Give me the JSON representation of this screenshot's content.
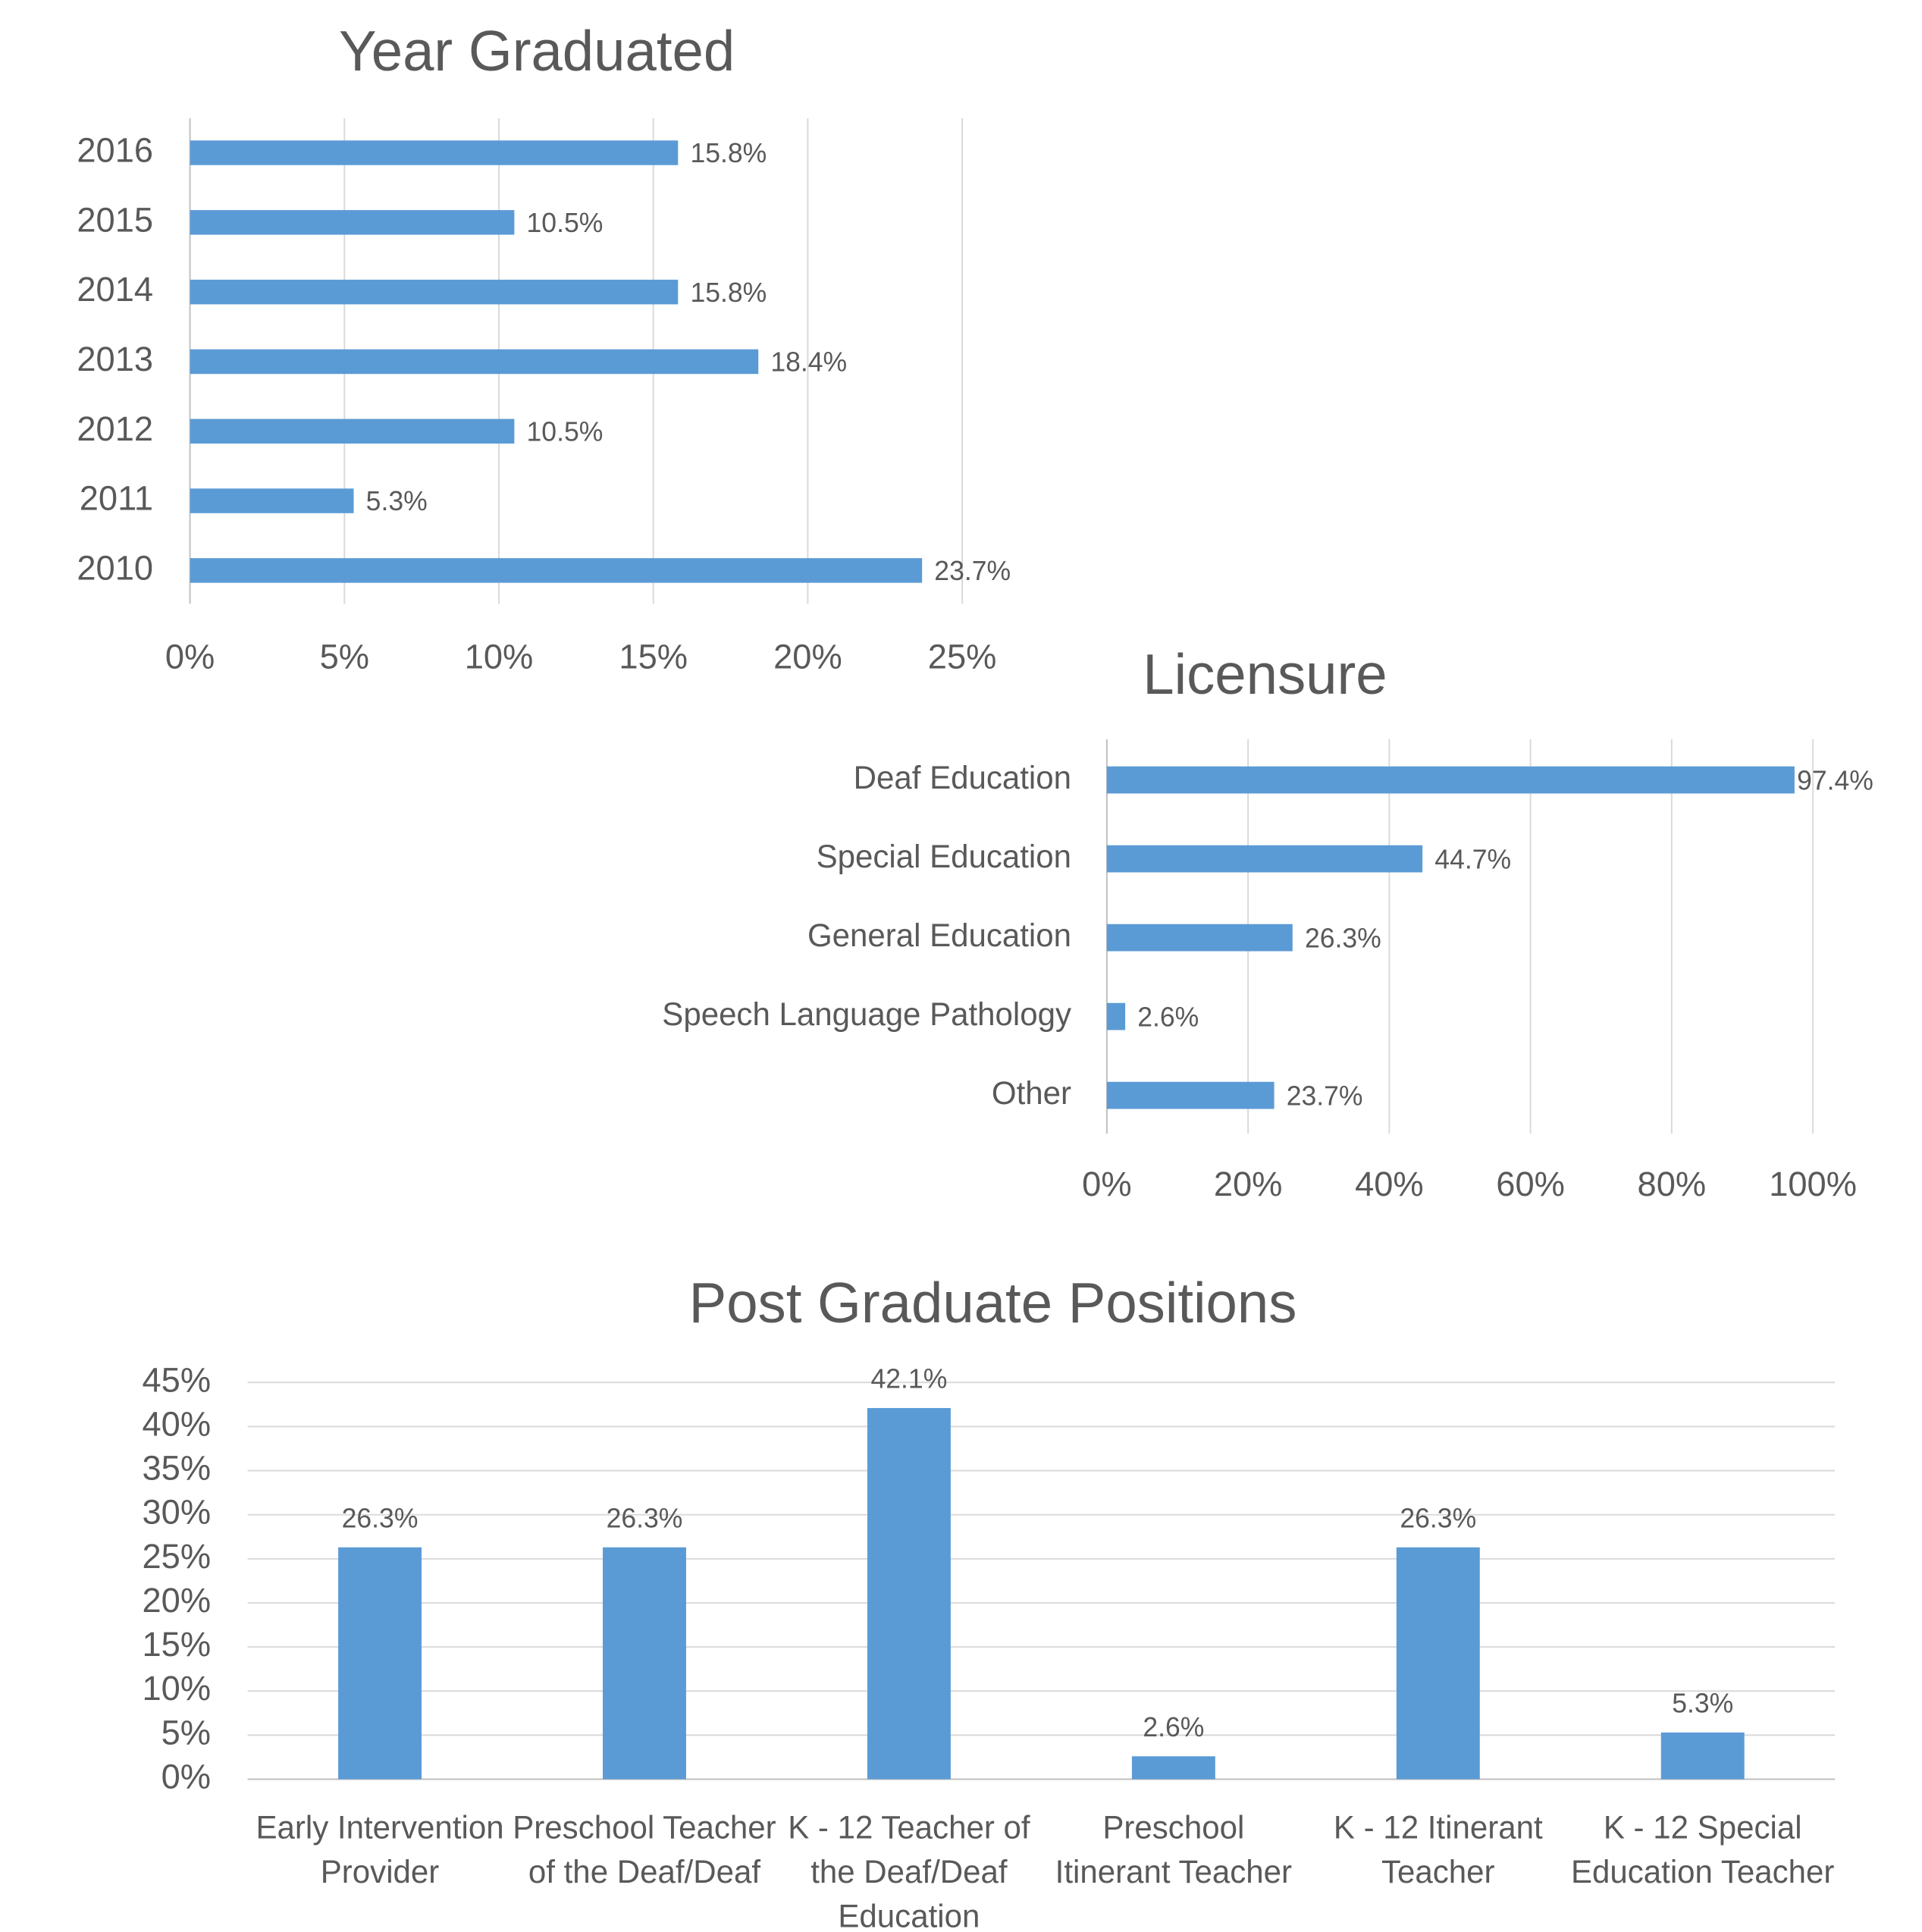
{
  "chart_data": [
    {
      "type": "hbar",
      "title": "Year Graduated",
      "categories": [
        "2016",
        "2015",
        "2014",
        "2013",
        "2012",
        "2011",
        "2010"
      ],
      "values": [
        15.8,
        10.5,
        15.8,
        18.4,
        10.5,
        5.3,
        23.7
      ],
      "value_labels": [
        "15.8%",
        "10.5%",
        "15.8%",
        "18.4%",
        "10.5%",
        "5.3%",
        "23.7%"
      ],
      "color": "#5b9bd5",
      "xlim": [
        0,
        25
      ],
      "xticks": [
        {
          "value": 0,
          "label": "0%"
        },
        {
          "value": 5,
          "label": "5%"
        },
        {
          "value": 10,
          "label": "10%"
        },
        {
          "value": 15,
          "label": "15%"
        },
        {
          "value": 20,
          "label": "20%"
        },
        {
          "value": 25,
          "label": "25%"
        }
      ],
      "grid": true
    },
    {
      "type": "hbar",
      "title": "Licensure",
      "categories": [
        "Deaf Education",
        "Special Education",
        "General Education",
        "Speech Language Pathology",
        "Other"
      ],
      "values": [
        97.4,
        44.7,
        26.3,
        2.6,
        23.7
      ],
      "value_labels": [
        "97.4%",
        "44.7%",
        "26.3%",
        "2.6%",
        "23.7%"
      ],
      "color": "#5b9bd5",
      "xlim": [
        0,
        100
      ],
      "xticks": [
        {
          "value": 0,
          "label": "0%"
        },
        {
          "value": 20,
          "label": "20%"
        },
        {
          "value": 40,
          "label": "40%"
        },
        {
          "value": 60,
          "label": "60%"
        },
        {
          "value": 80,
          "label": "80%"
        },
        {
          "value": 100,
          "label": "100%"
        }
      ],
      "grid": true
    },
    {
      "type": "bar",
      "title": "Post Graduate Positions",
      "categories": [
        "Early Intervention Provider",
        "Preschool Teacher of the Deaf/Deaf",
        "K - 12 Teacher of the Deaf/Deaf Education",
        "Preschool Itinerant Teacher",
        "K - 12 Itinerant Teacher",
        "K - 12 Special Education Teacher"
      ],
      "values": [
        26.3,
        26.3,
        42.1,
        2.6,
        26.3,
        5.3
      ],
      "value_labels": [
        "26.3%",
        "26.3%",
        "42.1%",
        "2.6%",
        "26.3%",
        "5.3%"
      ],
      "color": "#5b9bd5",
      "ylim": [
        0,
        45
      ],
      "yticks": [
        {
          "value": 0,
          "label": "0%"
        },
        {
          "value": 5,
          "label": "5%"
        },
        {
          "value": 10,
          "label": "10%"
        },
        {
          "value": 15,
          "label": "15%"
        },
        {
          "value": 20,
          "label": "20%"
        },
        {
          "value": 25,
          "label": "25%"
        },
        {
          "value": 30,
          "label": "30%"
        },
        {
          "value": 35,
          "label": "35%"
        },
        {
          "value": 40,
          "label": "40%"
        },
        {
          "value": 45,
          "label": "45%"
        }
      ],
      "grid": true
    }
  ]
}
